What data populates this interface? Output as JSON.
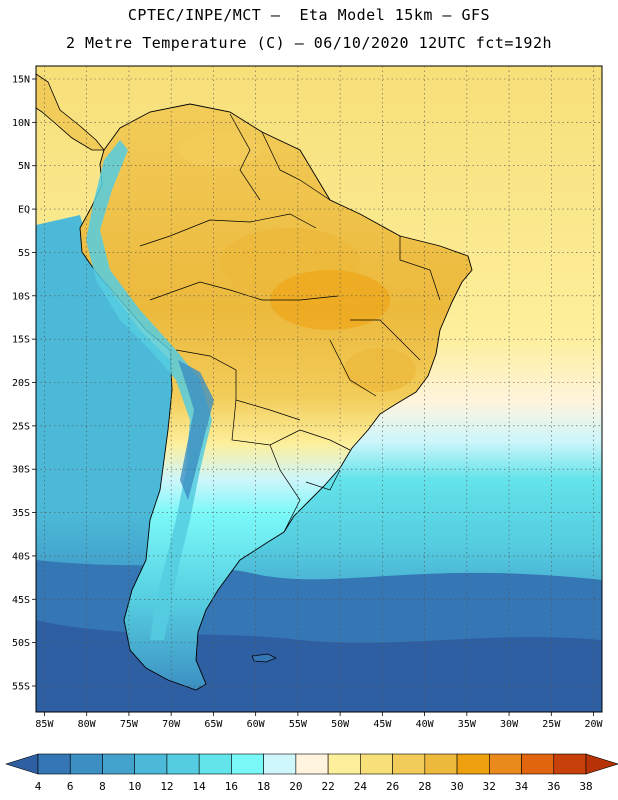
{
  "header": {
    "line1": "CPTEC/INPE/MCT –  Eta Model 15km – GFS",
    "line2": "2 Metre Temperature (C) – 06/10/2020 12UTC fct=192h"
  },
  "map": {
    "lat_labels": [
      "15N",
      "10N",
      "5N",
      "EQ",
      "5S",
      "10S",
      "15S",
      "20S",
      "25S",
      "30S",
      "35S",
      "40S",
      "45S",
      "50S",
      "55S"
    ],
    "lon_labels": [
      "85W",
      "80W",
      "75W",
      "70W",
      "65W",
      "60W",
      "55W",
      "50W",
      "45W",
      "40W",
      "35W",
      "30W",
      "25W",
      "20W"
    ],
    "grid": "dotted",
    "extent": {
      "lon": [
        -86,
        -19
      ],
      "lat": [
        -58,
        16.5
      ]
    }
  },
  "colorbar": {
    "labels": [
      "4",
      "6",
      "8",
      "10",
      "12",
      "14",
      "16",
      "18",
      "20",
      "22",
      "24",
      "26",
      "28",
      "30",
      "32",
      "34",
      "36",
      "38"
    ],
    "colors": [
      "#2f5fa3",
      "#3576b4",
      "#3c8fc2",
      "#43a3cc",
      "#4cb9d8",
      "#55cde0",
      "#63e3ea",
      "#7af8f8",
      "#cef6fb",
      "#fff4dd",
      "#fdef9c",
      "#f7df79",
      "#f2cc5a",
      "#ecb93c",
      "#efa00e",
      "#ea8a1d",
      "#e1650e",
      "#c8400a",
      "#b83207"
    ]
  }
}
